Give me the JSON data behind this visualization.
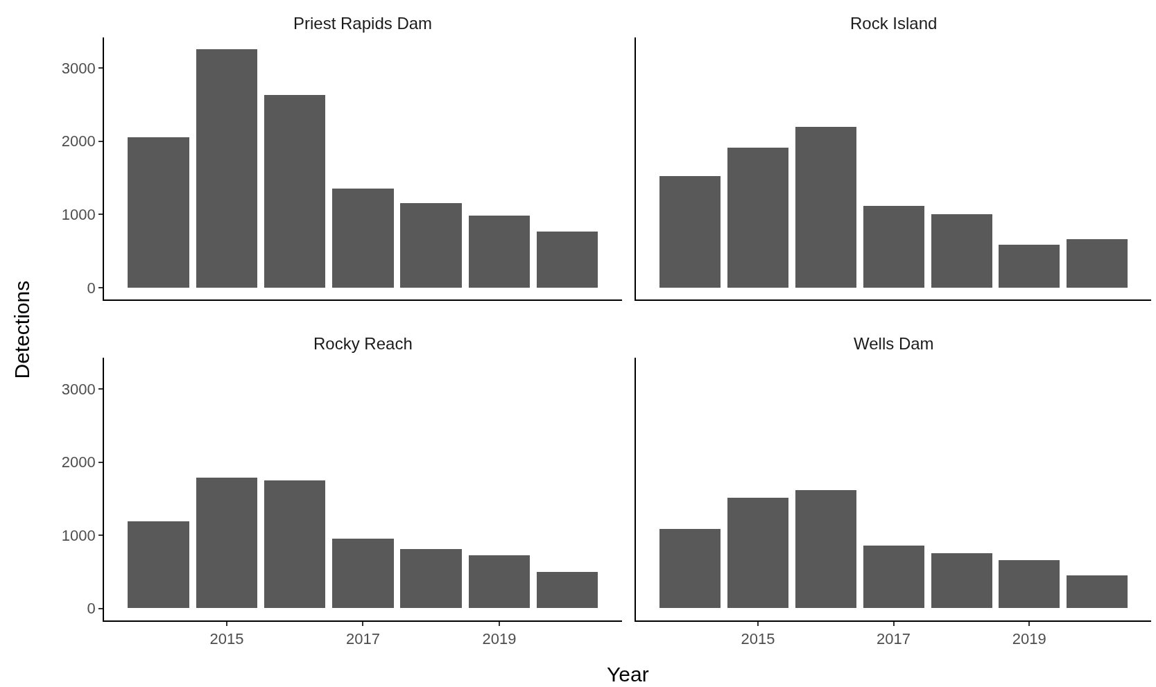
{
  "chart_data": [
    {
      "type": "bar",
      "title": "Priest Rapids Dam",
      "ylabel": "Detections",
      "x": [
        2014,
        2015,
        2016,
        2017,
        2018,
        2019,
        2020
      ],
      "values": [
        2060,
        3260,
        2640,
        1360,
        1160,
        990,
        770
      ],
      "color": "#595959",
      "xlim": [
        2013.2,
        2020.8
      ],
      "xticks": [
        2015,
        2017,
        2019
      ],
      "ylim": [
        -163,
        3423
      ],
      "yticks": [
        0,
        1000,
        2000,
        3000
      ],
      "tick_labels": "y"
    },
    {
      "type": "bar",
      "title": "Rock Island",
      "x": [
        2014,
        2015,
        2016,
        2017,
        2018,
        2019,
        2020
      ],
      "values": [
        1530,
        1920,
        2200,
        1120,
        1010,
        590,
        670
      ],
      "color": "#595959",
      "xlim": [
        2013.2,
        2020.8
      ],
      "xticks": [
        2015,
        2017,
        2019
      ],
      "ylim": [
        -163,
        3423
      ],
      "yticks": [
        0,
        1000,
        2000,
        3000
      ],
      "tick_labels": false
    },
    {
      "type": "bar",
      "title": "Rocky Reach",
      "xlabel": "Year",
      "x": [
        2014,
        2015,
        2016,
        2017,
        2018,
        2019,
        2020
      ],
      "values": [
        1190,
        1780,
        1750,
        950,
        810,
        720,
        500
      ],
      "color": "#595959",
      "xlim": [
        2013.2,
        2020.8
      ],
      "xticks": [
        2015,
        2017,
        2019
      ],
      "ylim": [
        -163,
        3423
      ],
      "yticks": [
        0,
        1000,
        2000,
        3000
      ]
    },
    {
      "type": "bar",
      "title": "Wells Dam",
      "x": [
        2014,
        2015,
        2016,
        2017,
        2018,
        2019,
        2020
      ],
      "values": [
        1080,
        1510,
        1610,
        860,
        750,
        660,
        450
      ],
      "color": "#595959",
      "xlim": [
        2013.2,
        2020.8
      ],
      "xticks": [
        2015,
        2017,
        2019
      ],
      "ylim": [
        -163,
        3423
      ],
      "yticks": [
        0,
        1000,
        2000,
        3000
      ],
      "tick_labels": "x"
    }
  ]
}
